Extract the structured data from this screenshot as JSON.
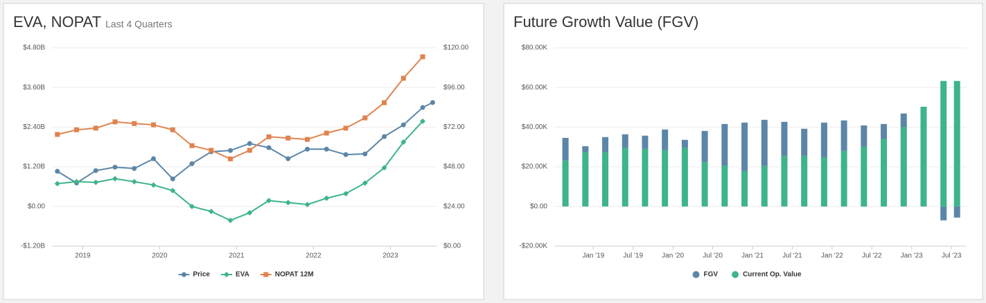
{
  "chart_data": [
    {
      "type": "line",
      "title": "EVA, NOPAT",
      "subtitle": "Last 4 Quarters",
      "xlim": [
        2018.6,
        2023.6
      ],
      "xticks": [
        2019,
        2020,
        2021,
        2022,
        2023
      ],
      "ylim": [
        -1200000000,
        4800000000
      ],
      "yticks": [
        {
          "value": -1200000000,
          "label": "-$1.20B"
        },
        {
          "value": 0,
          "label": "$0.00"
        },
        {
          "value": 1200000000,
          "label": "$1.20B"
        },
        {
          "value": 2400000000,
          "label": "$2.40B"
        },
        {
          "value": 3600000000,
          "label": "$3.60B"
        },
        {
          "value": 4800000000,
          "label": "$4.80B"
        }
      ],
      "y2lim": [
        0,
        120
      ],
      "y2ticks": [
        {
          "value": 0,
          "label": "$0.00"
        },
        {
          "value": 24,
          "label": "$24.00"
        },
        {
          "value": 48,
          "label": "$48.00"
        },
        {
          "value": 72,
          "label": "$72.00"
        },
        {
          "value": 96,
          "label": "$96.00"
        },
        {
          "value": 120,
          "label": "$120.00"
        }
      ],
      "grid": true,
      "legend": "bottom",
      "series": [
        {
          "name": "Price",
          "color": "#5b86a8",
          "marker": "circle",
          "axis": "y2",
          "x": [
            2018.67,
            2018.92,
            2019.17,
            2019.42,
            2019.67,
            2019.92,
            2020.17,
            2020.42,
            2020.67,
            2020.92,
            2021.17,
            2021.42,
            2021.67,
            2021.92,
            2022.17,
            2022.42,
            2022.67,
            2022.92,
            2023.17,
            2023.42,
            2023.55
          ],
          "values": [
            45.3,
            38.2,
            45.7,
            47.8,
            47.0,
            52.9,
            40.7,
            49.9,
            57.1,
            57.9,
            62.1,
            59.6,
            52.9,
            58.7,
            58.7,
            55.4,
            55.8,
            66.3,
            73.4,
            83.9,
            86.9
          ]
        },
        {
          "name": "EVA",
          "color": "#3db489",
          "marker": "diamond",
          "axis": "y",
          "x": [
            2018.67,
            2018.92,
            2019.17,
            2019.42,
            2019.67,
            2019.92,
            2020.17,
            2020.42,
            2020.67,
            2020.92,
            2021.17,
            2021.42,
            2021.67,
            2021.92,
            2022.17,
            2022.42,
            2022.67,
            2022.92,
            2023.17,
            2023.42
          ],
          "values": [
            690000000,
            750000000,
            730000000,
            840000000,
            750000000,
            650000000,
            480000000,
            0,
            -150000000,
            -420000000,
            -190000000,
            180000000,
            120000000,
            60000000,
            250000000,
            390000000,
            710000000,
            1170000000,
            1950000000,
            2580000000
          ]
        },
        {
          "name": "NOPAT 12M",
          "color": "#e0834f",
          "marker": "square",
          "axis": "y",
          "x": [
            2018.67,
            2018.92,
            2019.17,
            2019.42,
            2019.67,
            2019.92,
            2020.17,
            2020.42,
            2020.67,
            2020.92,
            2021.17,
            2021.42,
            2021.67,
            2021.92,
            2022.17,
            2022.42,
            2022.67,
            2022.92,
            2023.17,
            2023.42
          ],
          "values": [
            2180000000,
            2320000000,
            2370000000,
            2560000000,
            2510000000,
            2470000000,
            2320000000,
            1840000000,
            1700000000,
            1440000000,
            1700000000,
            2110000000,
            2070000000,
            2030000000,
            2220000000,
            2370000000,
            2680000000,
            3140000000,
            3880000000,
            4530000000
          ]
        }
      ]
    },
    {
      "type": "bar",
      "title": "Future Growth Value (FGV)",
      "xlim": [
        2018.51,
        2023.69
      ],
      "xticks": [
        {
          "value": 2019,
          "label": "Jan '19"
        },
        {
          "value": 2019.5,
          "label": "Jul '19"
        },
        {
          "value": 2020,
          "label": "Jan '20"
        },
        {
          "value": 2020.5,
          "label": "Jul '20"
        },
        {
          "value": 2021,
          "label": "Jan '21"
        },
        {
          "value": 2021.5,
          "label": "Jul '21"
        },
        {
          "value": 2022,
          "label": "Jan '22"
        },
        {
          "value": 2022.5,
          "label": "Jul '22"
        },
        {
          "value": 2023,
          "label": "Jan '23"
        },
        {
          "value": 2023.5,
          "label": "Jul '23"
        }
      ],
      "ylim": [
        -20000,
        80000
      ],
      "yticks": [
        {
          "value": -20000,
          "label": "-$20.00K"
        },
        {
          "value": 0,
          "label": "$0.00"
        },
        {
          "value": 20000,
          "label": "$20.00K"
        },
        {
          "value": 40000,
          "label": "$40.00K"
        },
        {
          "value": 60000,
          "label": "$60.00K"
        },
        {
          "value": 80000,
          "label": "$80.00K"
        }
      ],
      "grid": true,
      "legend": "bottom",
      "stacked": true,
      "x": [
        2018.65,
        2018.9,
        2019.15,
        2019.4,
        2019.65,
        2019.9,
        2020.15,
        2020.4,
        2020.65,
        2020.9,
        2021.15,
        2021.4,
        2021.65,
        2021.9,
        2022.15,
        2022.4,
        2022.65,
        2022.9,
        2023.15,
        2023.4,
        2023.57
      ],
      "series": [
        {
          "name": "FGV",
          "color": "#5b86a8",
          "values": [
            11500,
            3100,
            7700,
            7000,
            6700,
            10500,
            4200,
            15700,
            21000,
            24500,
            23400,
            17200,
            13700,
            17500,
            15400,
            10800,
            7700,
            7000,
            0,
            -7000,
            -5600
          ]
        },
        {
          "name": "Current Op. Value",
          "color": "#3db489",
          "values": [
            23100,
            27300,
            27300,
            29400,
            29000,
            28300,
            29400,
            22400,
            20600,
            17800,
            20300,
            25500,
            25500,
            24800,
            28000,
            30100,
            33900,
            39900,
            50300,
            63300,
            63300
          ]
        }
      ]
    }
  ]
}
